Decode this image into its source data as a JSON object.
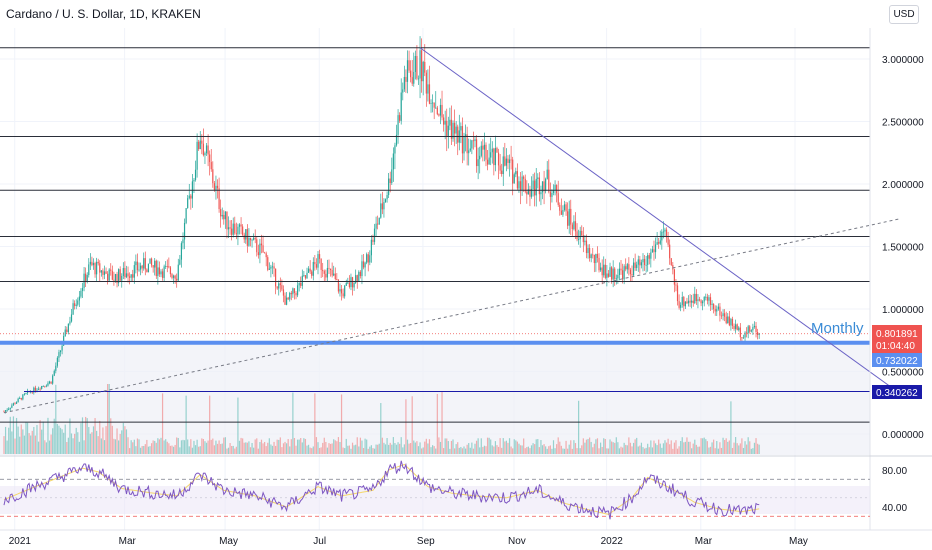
{
  "header": {
    "title": "Cardano / U. S. Dollar, 1D, KRAKEN",
    "currency_button": "USD"
  },
  "annotation": {
    "monthly_label": "Monthly"
  },
  "price_tags": {
    "last_price": "0.801891",
    "countdown": "01:04:40",
    "level_1": "0.732022",
    "level_2": "0.340262"
  },
  "colors": {
    "up": "#26a69a",
    "down": "#ef5350",
    "blue_band": "#5b8ff0",
    "level_line": "#1a1aa8",
    "trendline": "#6b63c6",
    "rsi_line": "#7e57c2",
    "rsi_ma": "#f5d769"
  },
  "chart_data": [
    {
      "type": "candlestick",
      "title": "Cardano / U. S. Dollar, 1D, KRAKEN",
      "x_tick_labels": [
        "2021",
        "Mar",
        "May",
        "Jul",
        "Sep",
        "Nov",
        "2022",
        "Mar",
        "May"
      ],
      "y_tick_labels": [
        "3.000000",
        "2.500000",
        "2.000000",
        "1.500000",
        "1.000000",
        "0.500000",
        "0.000000"
      ],
      "ylim": [
        -0.1,
        3.35
      ],
      "price_path": [
        [
          0,
          0.18
        ],
        [
          15,
          0.33
        ],
        [
          30,
          0.42
        ],
        [
          45,
          1.05
        ],
        [
          55,
          1.35
        ],
        [
          70,
          1.25
        ],
        [
          90,
          1.35
        ],
        [
          110,
          1.28
        ],
        [
          125,
          2.4
        ],
        [
          140,
          1.72
        ],
        [
          165,
          1.45
        ],
        [
          180,
          1.05
        ],
        [
          200,
          1.38
        ],
        [
          210,
          1.25
        ],
        [
          215,
          1.12
        ],
        [
          230,
          1.35
        ],
        [
          245,
          2.0
        ],
        [
          255,
          2.85
        ],
        [
          265,
          2.95
        ],
        [
          280,
          2.5
        ],
        [
          300,
          2.25
        ],
        [
          320,
          2.15
        ],
        [
          335,
          1.95
        ],
        [
          345,
          2.05
        ],
        [
          360,
          1.72
        ],
        [
          375,
          1.4
        ],
        [
          385,
          1.28
        ],
        [
          395,
          1.3
        ],
        [
          408,
          1.35
        ],
        [
          420,
          1.62
        ],
        [
          430,
          1.05
        ],
        [
          445,
          1.1
        ],
        [
          458,
          0.95
        ],
        [
          470,
          0.8
        ],
        [
          478,
          0.85
        ],
        [
          481,
          0.8
        ]
      ],
      "horizontal_levels": [
        3.09,
        2.38,
        1.95,
        1.58,
        1.22,
        0.73,
        0.34,
        0.095
      ],
      "highlighted_levels": [
        0.732022,
        0.340262
      ],
      "last_price": 0.801891,
      "descending_trendline": {
        "start": [
          265,
          3.09
        ],
        "end": [
          570,
          0.33
        ]
      },
      "dashed_trendline": {
        "start": [
          0,
          0.17
        ],
        "end": [
          570,
          1.72
        ]
      }
    },
    {
      "type": "line",
      "title": "RSI",
      "y_tick_labels": [
        "80.00",
        "40.00"
      ],
      "ylim": [
        20,
        95
      ],
      "bands": [
        70,
        30
      ],
      "mid": 50,
      "x": [
        0,
        20,
        35,
        50,
        60,
        75,
        95,
        110,
        125,
        140,
        160,
        180,
        200,
        215,
        235,
        245,
        255,
        270,
        285,
        300,
        320,
        340,
        355,
        370,
        385,
        400,
        410,
        425,
        440,
        455,
        470,
        481
      ],
      "values": [
        48,
        62,
        72,
        82,
        78,
        60,
        55,
        52,
        75,
        58,
        52,
        40,
        62,
        52,
        58,
        80,
        86,
        62,
        55,
        52,
        50,
        58,
        45,
        38,
        32,
        50,
        72,
        60,
        45,
        38,
        35,
        38
      ]
    }
  ]
}
